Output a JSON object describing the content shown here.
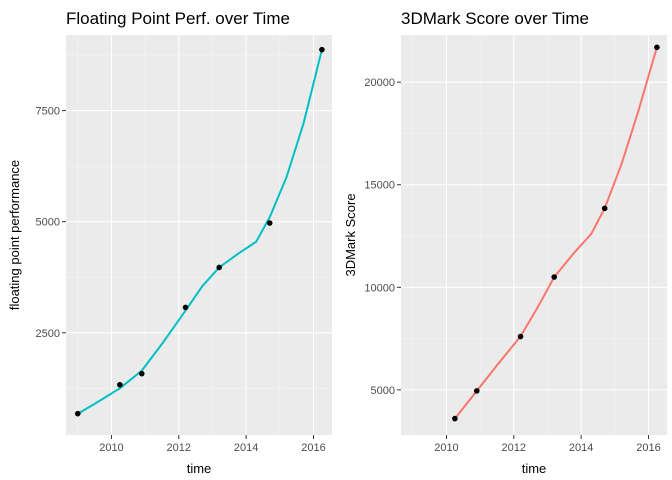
{
  "chart_data": [
    {
      "type": "scatter",
      "title": "Floating Point Perf. over Time",
      "xlabel": "time",
      "ylabel": "floating point performance",
      "xlim": [
        2008.65,
        2016.55
      ],
      "ylim": [
        200,
        9200
      ],
      "xticks": [
        2010,
        2012,
        2014,
        2016
      ],
      "xtick_labels": [
        "2010",
        "2012",
        "2014",
        "2016"
      ],
      "yticks": [
        2500,
        5000,
        7500
      ],
      "ytick_labels": [
        "2500",
        "5000",
        "7500"
      ],
      "grid": true,
      "background": "#ebebeb",
      "line_color": "#00bfc4",
      "point_color": "#000000",
      "points": {
        "x": [
          2009.0,
          2010.25,
          2010.9,
          2012.2,
          2013.2,
          2014.7,
          2016.25
        ],
        "y": [
          680,
          1330,
          1580,
          3070,
          3970,
          4970,
          8870
        ]
      },
      "smooth": {
        "x": [
          2009.0,
          2009.5,
          2010.25,
          2010.9,
          2011.5,
          2012.2,
          2012.7,
          2013.2,
          2013.8,
          2014.3,
          2014.7,
          2015.2,
          2015.7,
          2016.25
        ],
        "y": [
          680,
          900,
          1250,
          1650,
          2250,
          3000,
          3550,
          3970,
          4300,
          4550,
          5100,
          6000,
          7200,
          8870
        ]
      }
    },
    {
      "type": "scatter",
      "title": "3DMark Score over Time",
      "xlabel": "time",
      "ylabel": "3DMark Score",
      "xlim": [
        2008.65,
        2016.55
      ],
      "ylim": [
        2800,
        22300
      ],
      "xticks": [
        2010,
        2012,
        2014,
        2016
      ],
      "xtick_labels": [
        "2010",
        "2012",
        "2014",
        "2016"
      ],
      "yticks": [
        5000,
        10000,
        15000,
        20000
      ],
      "ytick_labels": [
        "5000",
        "10000",
        "15000",
        "20000"
      ],
      "grid": true,
      "background": "#ebebeb",
      "line_color": "#f8766d",
      "point_color": "#000000",
      "points": {
        "x": [
          2010.25,
          2010.9,
          2012.2,
          2013.2,
          2014.7,
          2016.25
        ],
        "y": [
          3600,
          4950,
          7600,
          10500,
          13850,
          21700
        ]
      },
      "smooth": {
        "x": [
          2010.25,
          2010.9,
          2011.5,
          2012.2,
          2012.7,
          2013.2,
          2013.8,
          2014.3,
          2014.7,
          2015.2,
          2015.7,
          2016.25
        ],
        "y": [
          3600,
          4950,
          6200,
          7600,
          9000,
          10500,
          11700,
          12600,
          13850,
          16000,
          18600,
          21700
        ]
      }
    }
  ]
}
